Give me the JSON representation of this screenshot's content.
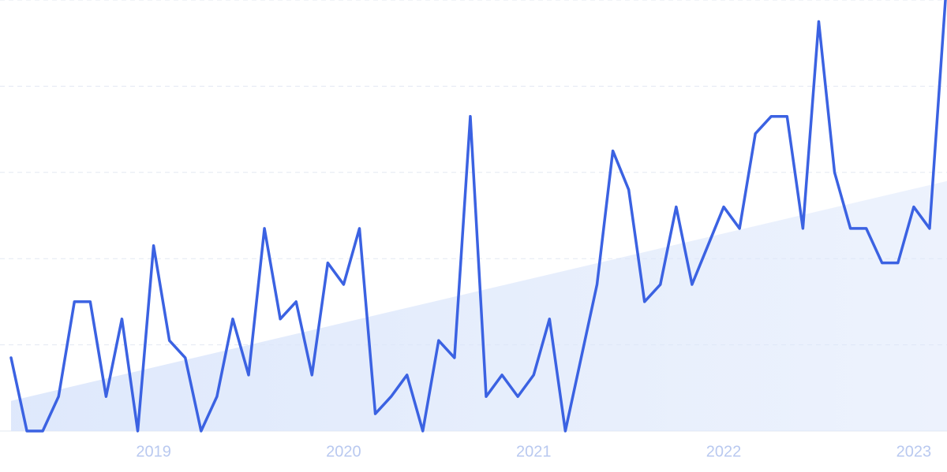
{
  "chart_data": {
    "type": "line",
    "categories": [
      null,
      null,
      null,
      null,
      null,
      null,
      null,
      null,
      null,
      "2019",
      null,
      null,
      null,
      null,
      null,
      null,
      null,
      null,
      null,
      null,
      null,
      "2020",
      null,
      null,
      null,
      null,
      null,
      null,
      null,
      null,
      null,
      null,
      null,
      "2021",
      null,
      null,
      null,
      null,
      null,
      null,
      null,
      null,
      null,
      null,
      null,
      "2022",
      null,
      null,
      null,
      null,
      null,
      null,
      null,
      null,
      null,
      null,
      null,
      "2023",
      null,
      null
    ],
    "series": [
      {
        "color": "#3b62e2",
        "values": [
          17,
          0,
          0,
          8,
          30,
          30,
          8,
          26,
          0,
          43,
          21,
          17,
          0,
          8,
          26,
          13,
          47,
          26,
          30,
          13,
          39,
          34,
          47,
          4,
          8,
          13,
          0,
          21,
          17,
          73,
          8,
          13,
          8,
          13,
          26,
          0,
          17,
          34,
          65,
          56,
          30,
          34,
          52,
          34,
          43,
          52,
          47,
          69,
          73,
          73,
          47,
          95,
          60,
          47,
          47,
          39,
          39,
          52,
          47,
          100
        ]
      }
    ],
    "trend": {
      "values": [
        7,
        58
      ],
      "color": "#dbe6fb"
    },
    "ylim": [
      0,
      100
    ],
    "yticks": [
      0,
      20,
      40,
      60,
      80,
      100
    ],
    "grid": true
  }
}
